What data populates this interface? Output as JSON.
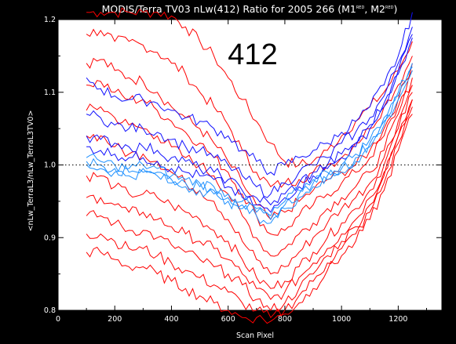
{
  "chart_data": {
    "type": "line",
    "title": "MODIS/Terra TV03 nLw(412) Ratio for 2005 266 (M1",
    "title_m1_sup": "RED",
    "title_mid": ", M2",
    "title_m2_sup": "RED",
    "title_end": ")",
    "band_label": "412",
    "xlabel": "Scan Pixel",
    "ylabel": "<nLw_TerraL3/nLw_TerraL3TV0>",
    "xlim": [
      0,
      1354
    ],
    "ylim": [
      0.8,
      1.2
    ],
    "x_ticks": [
      "0",
      "200",
      "400",
      "600",
      "800",
      "1000",
      "1200"
    ],
    "y_ticks": [
      "0.8",
      "0.9",
      "1.0",
      "1.1",
      "1.2"
    ],
    "reference_line_y": 1.0,
    "grid": false,
    "colors": {
      "red": "#ff0000",
      "blue": "#1010ff",
      "lightblue": "#1e90ff",
      "plot_bg": "#ffffff",
      "page_bg": "#000000"
    },
    "x": [
      100,
      150,
      200,
      250,
      300,
      350,
      400,
      450,
      500,
      550,
      600,
      650,
      700,
      750,
      800,
      850,
      900,
      950,
      1000,
      1050,
      1100,
      1150,
      1200,
      1250
    ],
    "series": [
      {
        "color": "red",
        "values": [
          1.21,
          1.21,
          1.21,
          1.21,
          1.21,
          1.21,
          1.205,
          1.19,
          1.17,
          1.15,
          1.12,
          1.09,
          1.06,
          1.03,
          1.005,
          1.0,
          1.005,
          1.02,
          1.04,
          1.06,
          1.08,
          1.1,
          1.13,
          1.17
        ]
      },
      {
        "color": "red",
        "values": [
          1.18,
          1.185,
          1.17,
          1.17,
          1.165,
          1.155,
          1.14,
          1.125,
          1.1,
          1.08,
          1.055,
          1.02,
          0.99,
          0.97,
          0.975,
          0.98,
          0.99,
          1.0,
          1.01,
          1.03,
          1.05,
          1.08,
          1.11,
          1.15
        ]
      },
      {
        "color": "red",
        "values": [
          1.14,
          1.145,
          1.13,
          1.12,
          1.115,
          1.1,
          1.08,
          1.065,
          1.05,
          1.03,
          1.005,
          0.975,
          0.945,
          0.925,
          0.935,
          0.95,
          0.965,
          0.98,
          0.99,
          1.0,
          1.02,
          1.05,
          1.09,
          1.14
        ]
      },
      {
        "color": "red",
        "values": [
          1.11,
          1.115,
          1.1,
          1.09,
          1.09,
          1.075,
          1.06,
          1.045,
          1.03,
          1.01,
          0.99,
          0.96,
          0.93,
          0.905,
          0.91,
          0.93,
          0.945,
          0.96,
          0.975,
          0.99,
          1.01,
          1.04,
          1.08,
          1.13
        ]
      },
      {
        "color": "red",
        "values": [
          1.075,
          1.08,
          1.065,
          1.055,
          1.05,
          1.04,
          1.025,
          1.01,
          1.0,
          0.985,
          0.96,
          0.93,
          0.9,
          0.875,
          0.885,
          0.905,
          0.92,
          0.94,
          0.955,
          0.97,
          0.99,
          1.02,
          1.07,
          1.12
        ]
      },
      {
        "color": "red",
        "values": [
          1.04,
          1.04,
          1.025,
          1.015,
          1.015,
          1.005,
          0.99,
          0.975,
          0.965,
          0.95,
          0.925,
          0.895,
          0.87,
          0.85,
          0.86,
          0.88,
          0.9,
          0.92,
          0.94,
          0.955,
          0.975,
          1.01,
          1.06,
          1.11
        ]
      },
      {
        "color": "red",
        "values": [
          0.985,
          0.985,
          0.97,
          0.96,
          0.96,
          0.955,
          0.945,
          0.935,
          0.925,
          0.91,
          0.895,
          0.87,
          0.845,
          0.83,
          0.84,
          0.86,
          0.88,
          0.9,
          0.92,
          0.94,
          0.965,
          1.0,
          1.05,
          1.1
        ]
      },
      {
        "color": "red",
        "values": [
          0.955,
          0.955,
          0.945,
          0.935,
          0.935,
          0.925,
          0.915,
          0.905,
          0.895,
          0.885,
          0.87,
          0.85,
          0.83,
          0.815,
          0.825,
          0.845,
          0.865,
          0.885,
          0.905,
          0.925,
          0.955,
          0.99,
          1.04,
          1.09
        ]
      },
      {
        "color": "red",
        "values": [
          0.93,
          0.93,
          0.92,
          0.91,
          0.91,
          0.9,
          0.89,
          0.88,
          0.87,
          0.86,
          0.85,
          0.835,
          0.815,
          0.8,
          0.81,
          0.83,
          0.85,
          0.875,
          0.895,
          0.915,
          0.945,
          0.985,
          1.04,
          1.09
        ]
      },
      {
        "color": "red",
        "values": [
          0.905,
          0.905,
          0.895,
          0.885,
          0.885,
          0.875,
          0.865,
          0.855,
          0.845,
          0.835,
          0.825,
          0.81,
          0.8,
          0.79,
          0.8,
          0.82,
          0.84,
          0.865,
          0.885,
          0.905,
          0.935,
          0.975,
          1.03,
          1.08
        ]
      },
      {
        "color": "red",
        "values": [
          0.88,
          0.88,
          0.87,
          0.86,
          0.86,
          0.85,
          0.84,
          0.83,
          0.82,
          0.81,
          0.8,
          0.79,
          0.79,
          0.785,
          0.795,
          0.81,
          0.83,
          0.855,
          0.875,
          0.895,
          0.925,
          0.965,
          1.02,
          1.07
        ]
      },
      {
        "color": "blue",
        "values": [
          1.12,
          1.105,
          1.095,
          1.09,
          1.09,
          1.085,
          1.075,
          1.065,
          1.06,
          1.05,
          1.04,
          1.02,
          1.005,
          0.99,
          1.0,
          1.01,
          1.02,
          1.03,
          1.045,
          1.06,
          1.08,
          1.11,
          1.15,
          1.21
        ]
      },
      {
        "color": "blue",
        "values": [
          1.07,
          1.065,
          1.055,
          1.05,
          1.05,
          1.045,
          1.035,
          1.025,
          1.02,
          1.01,
          1.0,
          0.985,
          0.97,
          0.96,
          0.975,
          0.99,
          1.0,
          1.01,
          1.03,
          1.045,
          1.065,
          1.095,
          1.14,
          1.19
        ]
      },
      {
        "color": "blue",
        "values": [
          1.04,
          1.035,
          1.03,
          1.025,
          1.025,
          1.02,
          1.01,
          1.005,
          0.995,
          0.99,
          0.98,
          0.965,
          0.955,
          0.945,
          0.96,
          0.975,
          0.99,
          1.0,
          1.015,
          1.03,
          1.055,
          1.085,
          1.13,
          1.18
        ]
      },
      {
        "color": "blue",
        "values": [
          1.025,
          1.02,
          1.015,
          1.01,
          1.01,
          1.005,
          0.995,
          0.99,
          0.985,
          0.98,
          0.97,
          0.955,
          0.945,
          0.935,
          0.955,
          0.97,
          0.985,
          0.995,
          1.01,
          1.025,
          1.05,
          1.08,
          1.125,
          1.175
        ]
      },
      {
        "color": "lightblue",
        "values": [
          1.01,
          1.005,
          1.0,
          0.995,
          1.0,
          0.995,
          0.985,
          0.98,
          0.975,
          0.97,
          0.96,
          0.95,
          0.94,
          0.93,
          0.95,
          0.965,
          0.98,
          0.99,
          1.0,
          1.015,
          1.035,
          1.065,
          1.1,
          1.14
        ]
      },
      {
        "color": "lightblue",
        "values": [
          1.005,
          1.0,
          0.995,
          0.99,
          0.995,
          0.99,
          0.98,
          0.975,
          0.97,
          0.965,
          0.955,
          0.945,
          0.935,
          0.925,
          0.945,
          0.96,
          0.975,
          0.985,
          0.995,
          1.01,
          1.03,
          1.06,
          1.095,
          1.135
        ]
      },
      {
        "color": "lightblue",
        "values": [
          1.0,
          0.995,
          0.99,
          0.985,
          0.99,
          0.985,
          0.975,
          0.97,
          0.965,
          0.96,
          0.95,
          0.94,
          0.93,
          0.92,
          0.94,
          0.955,
          0.97,
          0.98,
          0.99,
          1.005,
          1.025,
          1.055,
          1.09,
          1.13
        ]
      }
    ]
  }
}
